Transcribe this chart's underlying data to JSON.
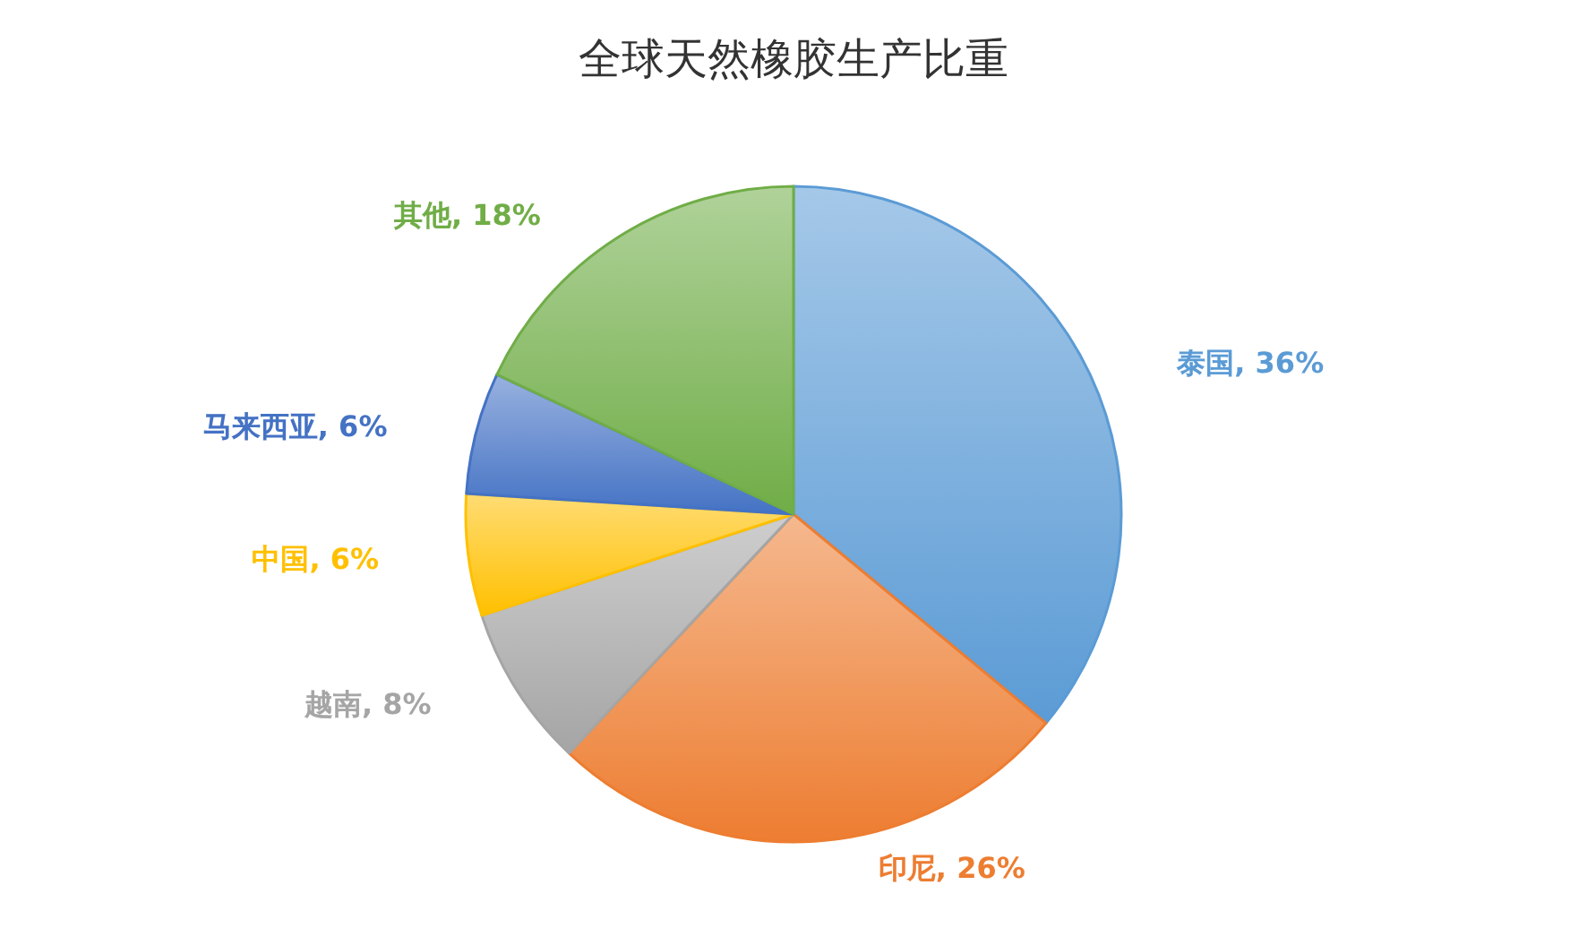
{
  "chart_data": {
    "type": "pie",
    "title": "全球天然橡胶生产比重",
    "categories": [
      "泰国",
      "印尼",
      "越南",
      "中国",
      "马来西亚",
      "其他"
    ],
    "values": [
      36,
      26,
      8,
      6,
      6,
      18
    ],
    "value_labels": [
      "36%",
      "26%",
      "8%",
      "6%",
      "6%",
      "18%"
    ],
    "colors": [
      "#5b9bd5",
      "#ed7d31",
      "#a5a5a5",
      "#ffc000",
      "#4472c4",
      "#70ad47"
    ],
    "legend": false
  }
}
